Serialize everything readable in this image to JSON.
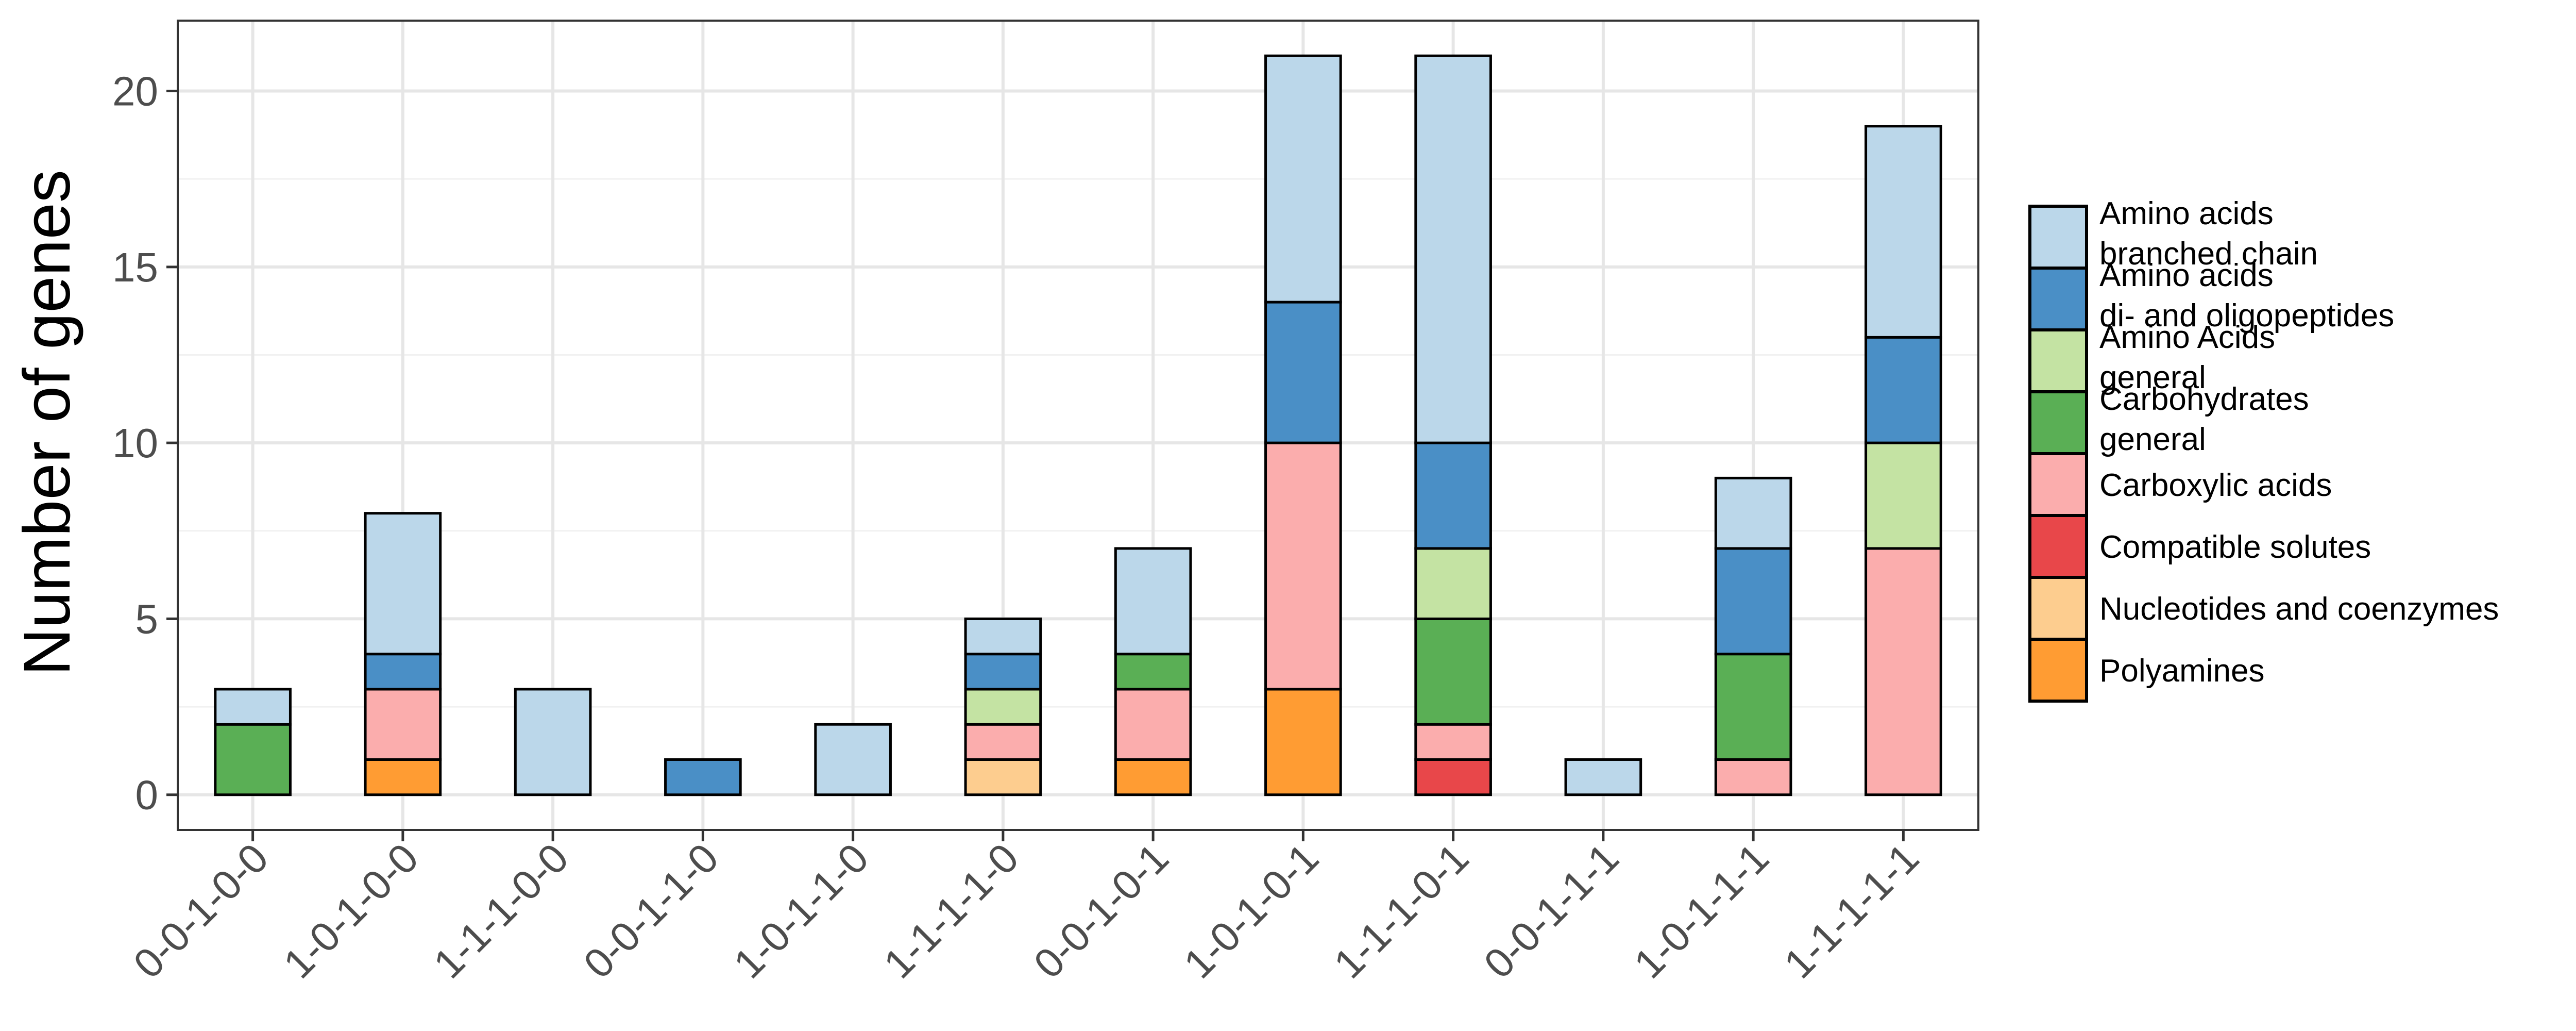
{
  "chart_data": {
    "type": "bar",
    "stacked": true,
    "title": "",
    "xlabel": "",
    "ylabel": "Number of genes",
    "ylim": [
      -1,
      22
    ],
    "yticks": [
      0,
      5,
      10,
      15,
      20
    ],
    "grid": true,
    "legend_position": "right",
    "categories": [
      "0-0-1-0-0",
      "1-0-1-0-0",
      "1-1-1-0-0",
      "0-0-1-1-0",
      "1-0-1-1-0",
      "1-1-1-1-0",
      "0-0-1-0-1",
      "1-0-1-0-1",
      "1-1-1-0-1",
      "0-0-1-1-1",
      "1-0-1-1-1",
      "1-1-1-1-1"
    ],
    "series": [
      {
        "name": "Polyamines",
        "color": "#ff9c33",
        "values": [
          0,
          1,
          0,
          0,
          0,
          0,
          1,
          3,
          0,
          0,
          0,
          0
        ]
      },
      {
        "name": "Nucleotides and coenzymes",
        "color": "#fdcd8f",
        "values": [
          0,
          0,
          0,
          0,
          0,
          1,
          0,
          0,
          0,
          0,
          0,
          0
        ]
      },
      {
        "name": "Compatible solutes",
        "color": "#e8474a",
        "values": [
          0,
          0,
          0,
          0,
          0,
          0,
          0,
          0,
          1,
          0,
          0,
          0
        ]
      },
      {
        "name": "Carboxylic acids",
        "color": "#fbadad",
        "values": [
          0,
          2,
          0,
          0,
          0,
          1,
          2,
          7,
          1,
          0,
          1,
          7
        ]
      },
      {
        "name": "Carbohydrates\ngeneral",
        "color": "#5aaf55",
        "values": [
          2,
          0,
          0,
          0,
          0,
          0,
          1,
          0,
          3,
          0,
          3,
          0
        ]
      },
      {
        "name": "Amino Acids\ngeneral",
        "color": "#c4e3a3",
        "values": [
          0,
          0,
          0,
          0,
          0,
          1,
          0,
          0,
          2,
          0,
          0,
          3
        ]
      },
      {
        "name": "Amino acids\ndi- and oligopeptides",
        "color": "#4a8fc6",
        "values": [
          0,
          1,
          0,
          1,
          0,
          1,
          0,
          4,
          3,
          0,
          3,
          3
        ]
      },
      {
        "name": "Amino acids\nbranched chain",
        "color": "#bbd7ea",
        "values": [
          1,
          4,
          3,
          0,
          2,
          1,
          3,
          7,
          11,
          1,
          2,
          6
        ]
      }
    ],
    "legend_order": [
      "Amino acids\nbranched chain",
      "Amino acids\ndi- and oligopeptides",
      "Amino Acids\ngeneral",
      "Carbohydrates\ngeneral",
      "Carboxylic acids",
      "Compatible solutes",
      "Nucleotides and coenzymes",
      "Polyamines"
    ]
  }
}
